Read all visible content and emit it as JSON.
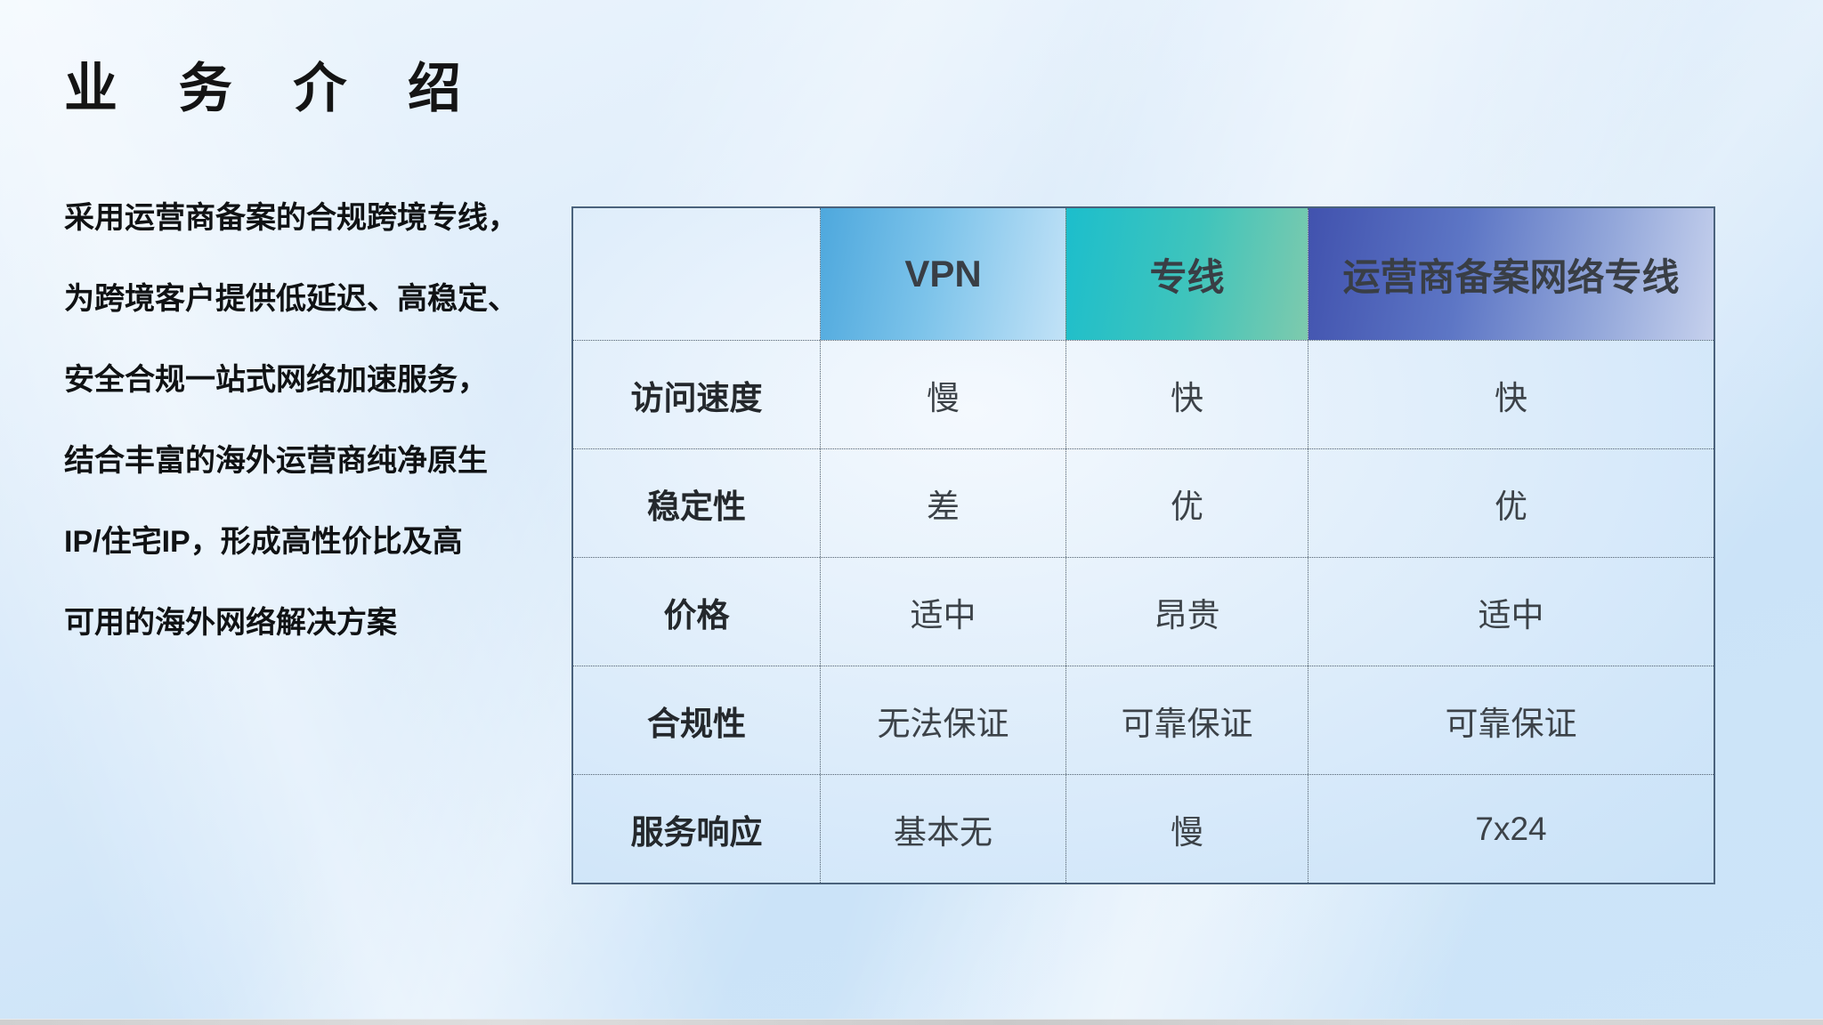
{
  "page": {
    "title": "业 务 介 绍"
  },
  "intro": {
    "lines": [
      "采用运营商备案的合规跨境专线，",
      "为跨境客户提供低延迟、高稳定、",
      "安全合规一站式网络加速服务，",
      "结合丰富的海外运营商纯净原生",
      "IP/住宅IP，形成高性价比及高",
      "可用的海外网络解决方案"
    ]
  },
  "table": {
    "columns": [
      "",
      "VPN",
      "专线",
      "运营商备案网络专线"
    ],
    "rows": [
      {
        "label": "访问速度",
        "values": [
          "慢",
          "快",
          "快"
        ]
      },
      {
        "label": "稳定性",
        "values": [
          "差",
          "优",
          "优"
        ]
      },
      {
        "label": "价格",
        "values": [
          "适中",
          "昂贵",
          "适中"
        ]
      },
      {
        "label": "合规性",
        "values": [
          "无法保证",
          "可靠保证",
          "可靠保证"
        ]
      },
      {
        "label": "服务响应",
        "values": [
          "基本无",
          "慢",
          "7x24"
        ]
      }
    ]
  },
  "colors": {
    "vpn_header_start": "#4ea8dd",
    "vpn_header_end": "#c2e2f7",
    "dedicated_header_start": "#1cbecc",
    "dedicated_header_end": "#7ecaad",
    "carrier_header_start": "#4152ae",
    "carrier_header_end": "#c6d1ed",
    "page_background": "#cde5f9",
    "table_border": "#4a627c",
    "title_text": "#141414"
  }
}
